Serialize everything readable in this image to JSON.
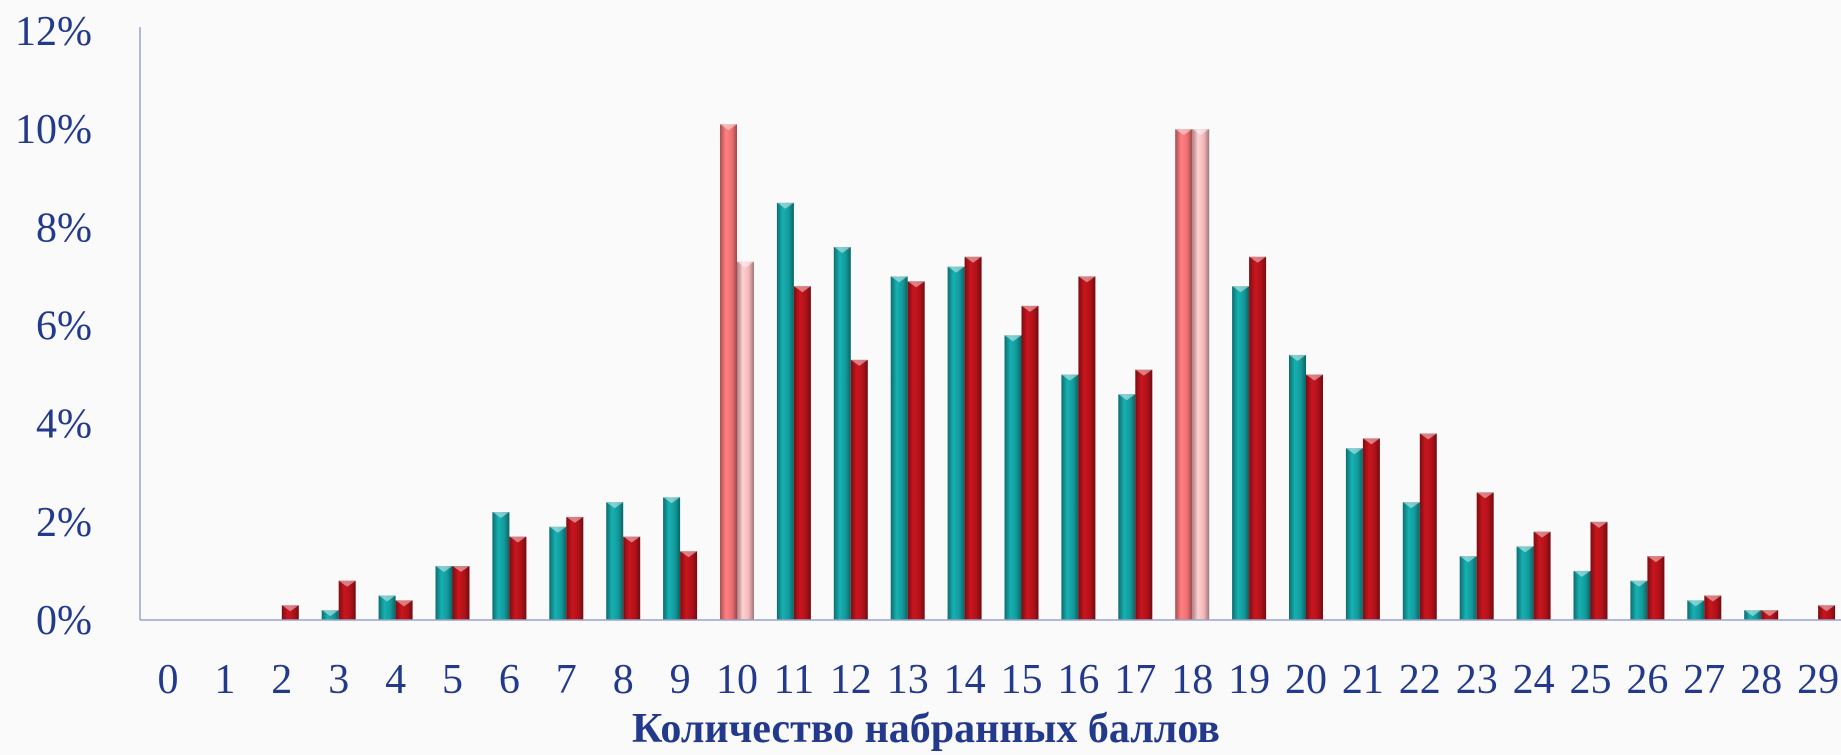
{
  "chart_data": {
    "type": "bar",
    "title": "",
    "xlabel": "Количество набранных баллов",
    "ylabel": "",
    "ylim": [
      0,
      12
    ],
    "y_tick_values": [
      0,
      2,
      4,
      6,
      8,
      10,
      12
    ],
    "y_tick_labels": [
      "0%",
      "2%",
      "4%",
      "6%",
      "8%",
      "10%",
      "12%"
    ],
    "categories": [
      "0",
      "1",
      "2",
      "3",
      "4",
      "5",
      "6",
      "7",
      "8",
      "9",
      "10",
      "11",
      "12",
      "13",
      "14",
      "15",
      "16",
      "17",
      "18",
      "19",
      "20",
      "21",
      "22",
      "23",
      "24",
      "25",
      "26",
      "27",
      "28",
      "29"
    ],
    "series": [
      {
        "color": "#139a9b",
        "values": [
          0,
          0,
          0,
          0.2,
          0.5,
          1.1,
          2.2,
          1.9,
          2.4,
          2.5,
          10.1,
          8.5,
          7.6,
          7.0,
          7.2,
          5.8,
          5.0,
          4.6,
          10.0,
          6.8,
          5.4,
          3.5,
          2.4,
          1.3,
          1.5,
          1.0,
          0.8,
          0.4,
          0.2,
          0
        ]
      },
      {
        "color": "#b0121a",
        "values": [
          0,
          0,
          0.3,
          0.8,
          0.4,
          1.1,
          1.7,
          2.1,
          1.7,
          1.4,
          7.3,
          6.8,
          5.3,
          6.9,
          7.4,
          6.4,
          7.0,
          5.1,
          10.0,
          7.4,
          5.0,
          3.7,
          3.8,
          2.6,
          1.8,
          2.0,
          1.3,
          0.5,
          0.2,
          0.3
        ]
      }
    ],
    "highlight_categories": [
      "10",
      "18"
    ],
    "highlight_colors": [
      "#ee6f72",
      "#f3b6b8"
    ],
    "grid": false,
    "legend": "none"
  }
}
